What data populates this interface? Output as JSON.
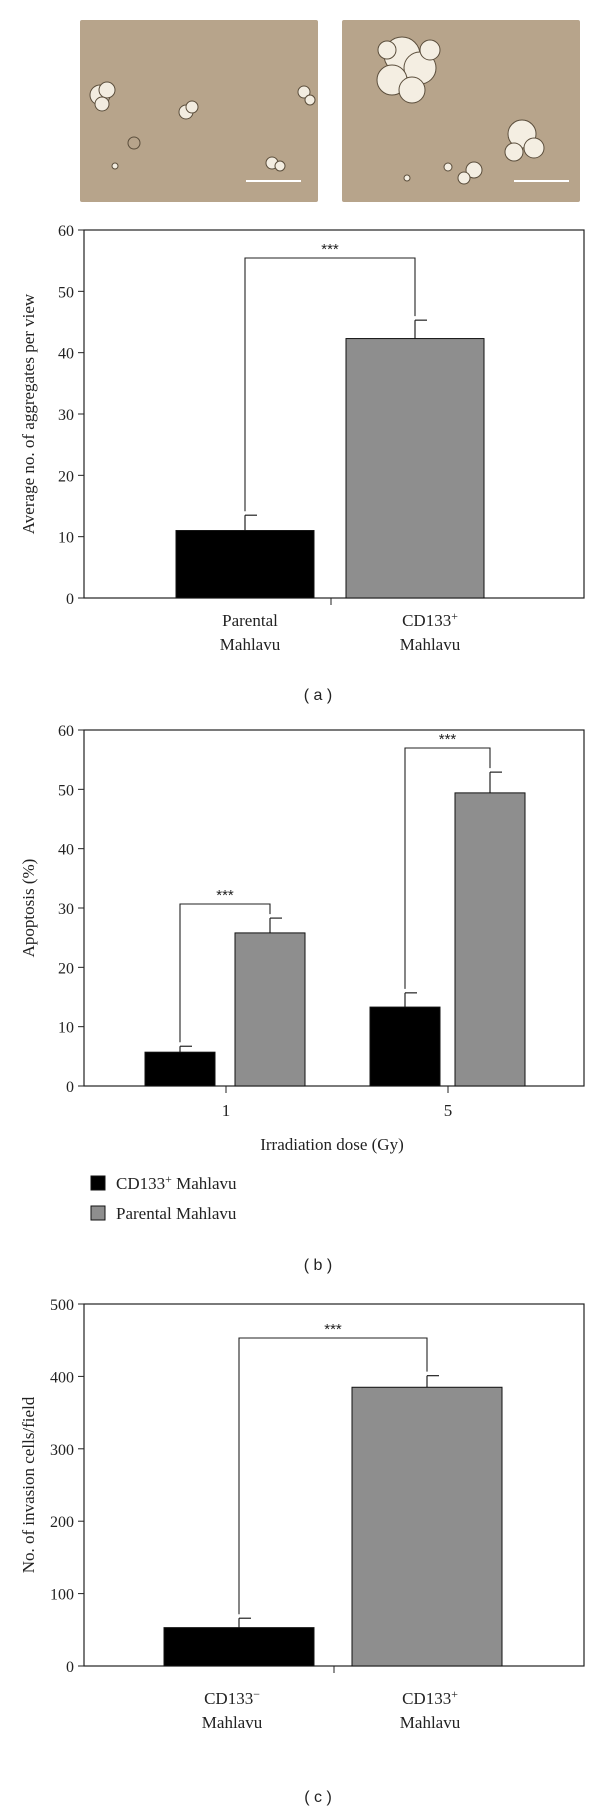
{
  "colors": {
    "primary_bar": "#000000",
    "secondary_bar": "#8e8e8e",
    "micro_bg": "#b7a48b"
  },
  "micrographs": [
    {
      "name": "parental-micrograph"
    },
    {
      "name": "cd133-micrograph"
    }
  ],
  "chart_data": [
    {
      "type": "bar",
      "panel_label": "( a )",
      "title": "",
      "ylabel": "Average no. of aggregates per view",
      "xlabel": "",
      "ylim": [
        0,
        60
      ],
      "yticks": [
        "0",
        "10",
        "20",
        "30",
        "40",
        "50",
        "60"
      ],
      "categories": [
        {
          "lines": [
            "Parental",
            "Mahlavu"
          ],
          "sup": ""
        },
        {
          "lines": [
            "CD133",
            "Mahlavu"
          ],
          "sup": "+"
        }
      ],
      "values": [
        11,
        42.3
      ],
      "errors": [
        2.5,
        3
      ],
      "significance": "***"
    },
    {
      "type": "bar",
      "panel_label": "( b )",
      "title": "",
      "ylabel": "Apoptosis (%)",
      "xlabel": "Irradiation dose (Gy)",
      "ylim": [
        0,
        60
      ],
      "yticks": [
        "0",
        "10",
        "20",
        "30",
        "40",
        "50",
        "60"
      ],
      "categories": [
        "1",
        "5"
      ],
      "series": [
        {
          "name": "CD133",
          "sup": "+",
          "suffix": " Mahlavu",
          "values": [
            5.7,
            13.3
          ],
          "errors": [
            1,
            2.4
          ]
        },
        {
          "name": "Parental Mahlavu",
          "sup": "",
          "suffix": "",
          "values": [
            25.8,
            49.4
          ],
          "errors": [
            2.5,
            3.5
          ]
        }
      ],
      "significance": "***",
      "legend_position": "below"
    },
    {
      "type": "bar",
      "panel_label": "( c )",
      "title": "",
      "ylabel": "No. of invasion cells/field",
      "xlabel": "",
      "ylim": [
        0,
        500
      ],
      "yticks": [
        "0",
        "100",
        "200",
        "300",
        "400",
        "500"
      ],
      "categories": [
        {
          "lines": [
            "CD133",
            "Mahlavu"
          ],
          "sup": "−"
        },
        {
          "lines": [
            "CD133",
            "Mahlavu"
          ],
          "sup": "+"
        }
      ],
      "values": [
        53,
        385
      ],
      "errors": [
        13,
        16
      ],
      "significance": "***"
    }
  ]
}
